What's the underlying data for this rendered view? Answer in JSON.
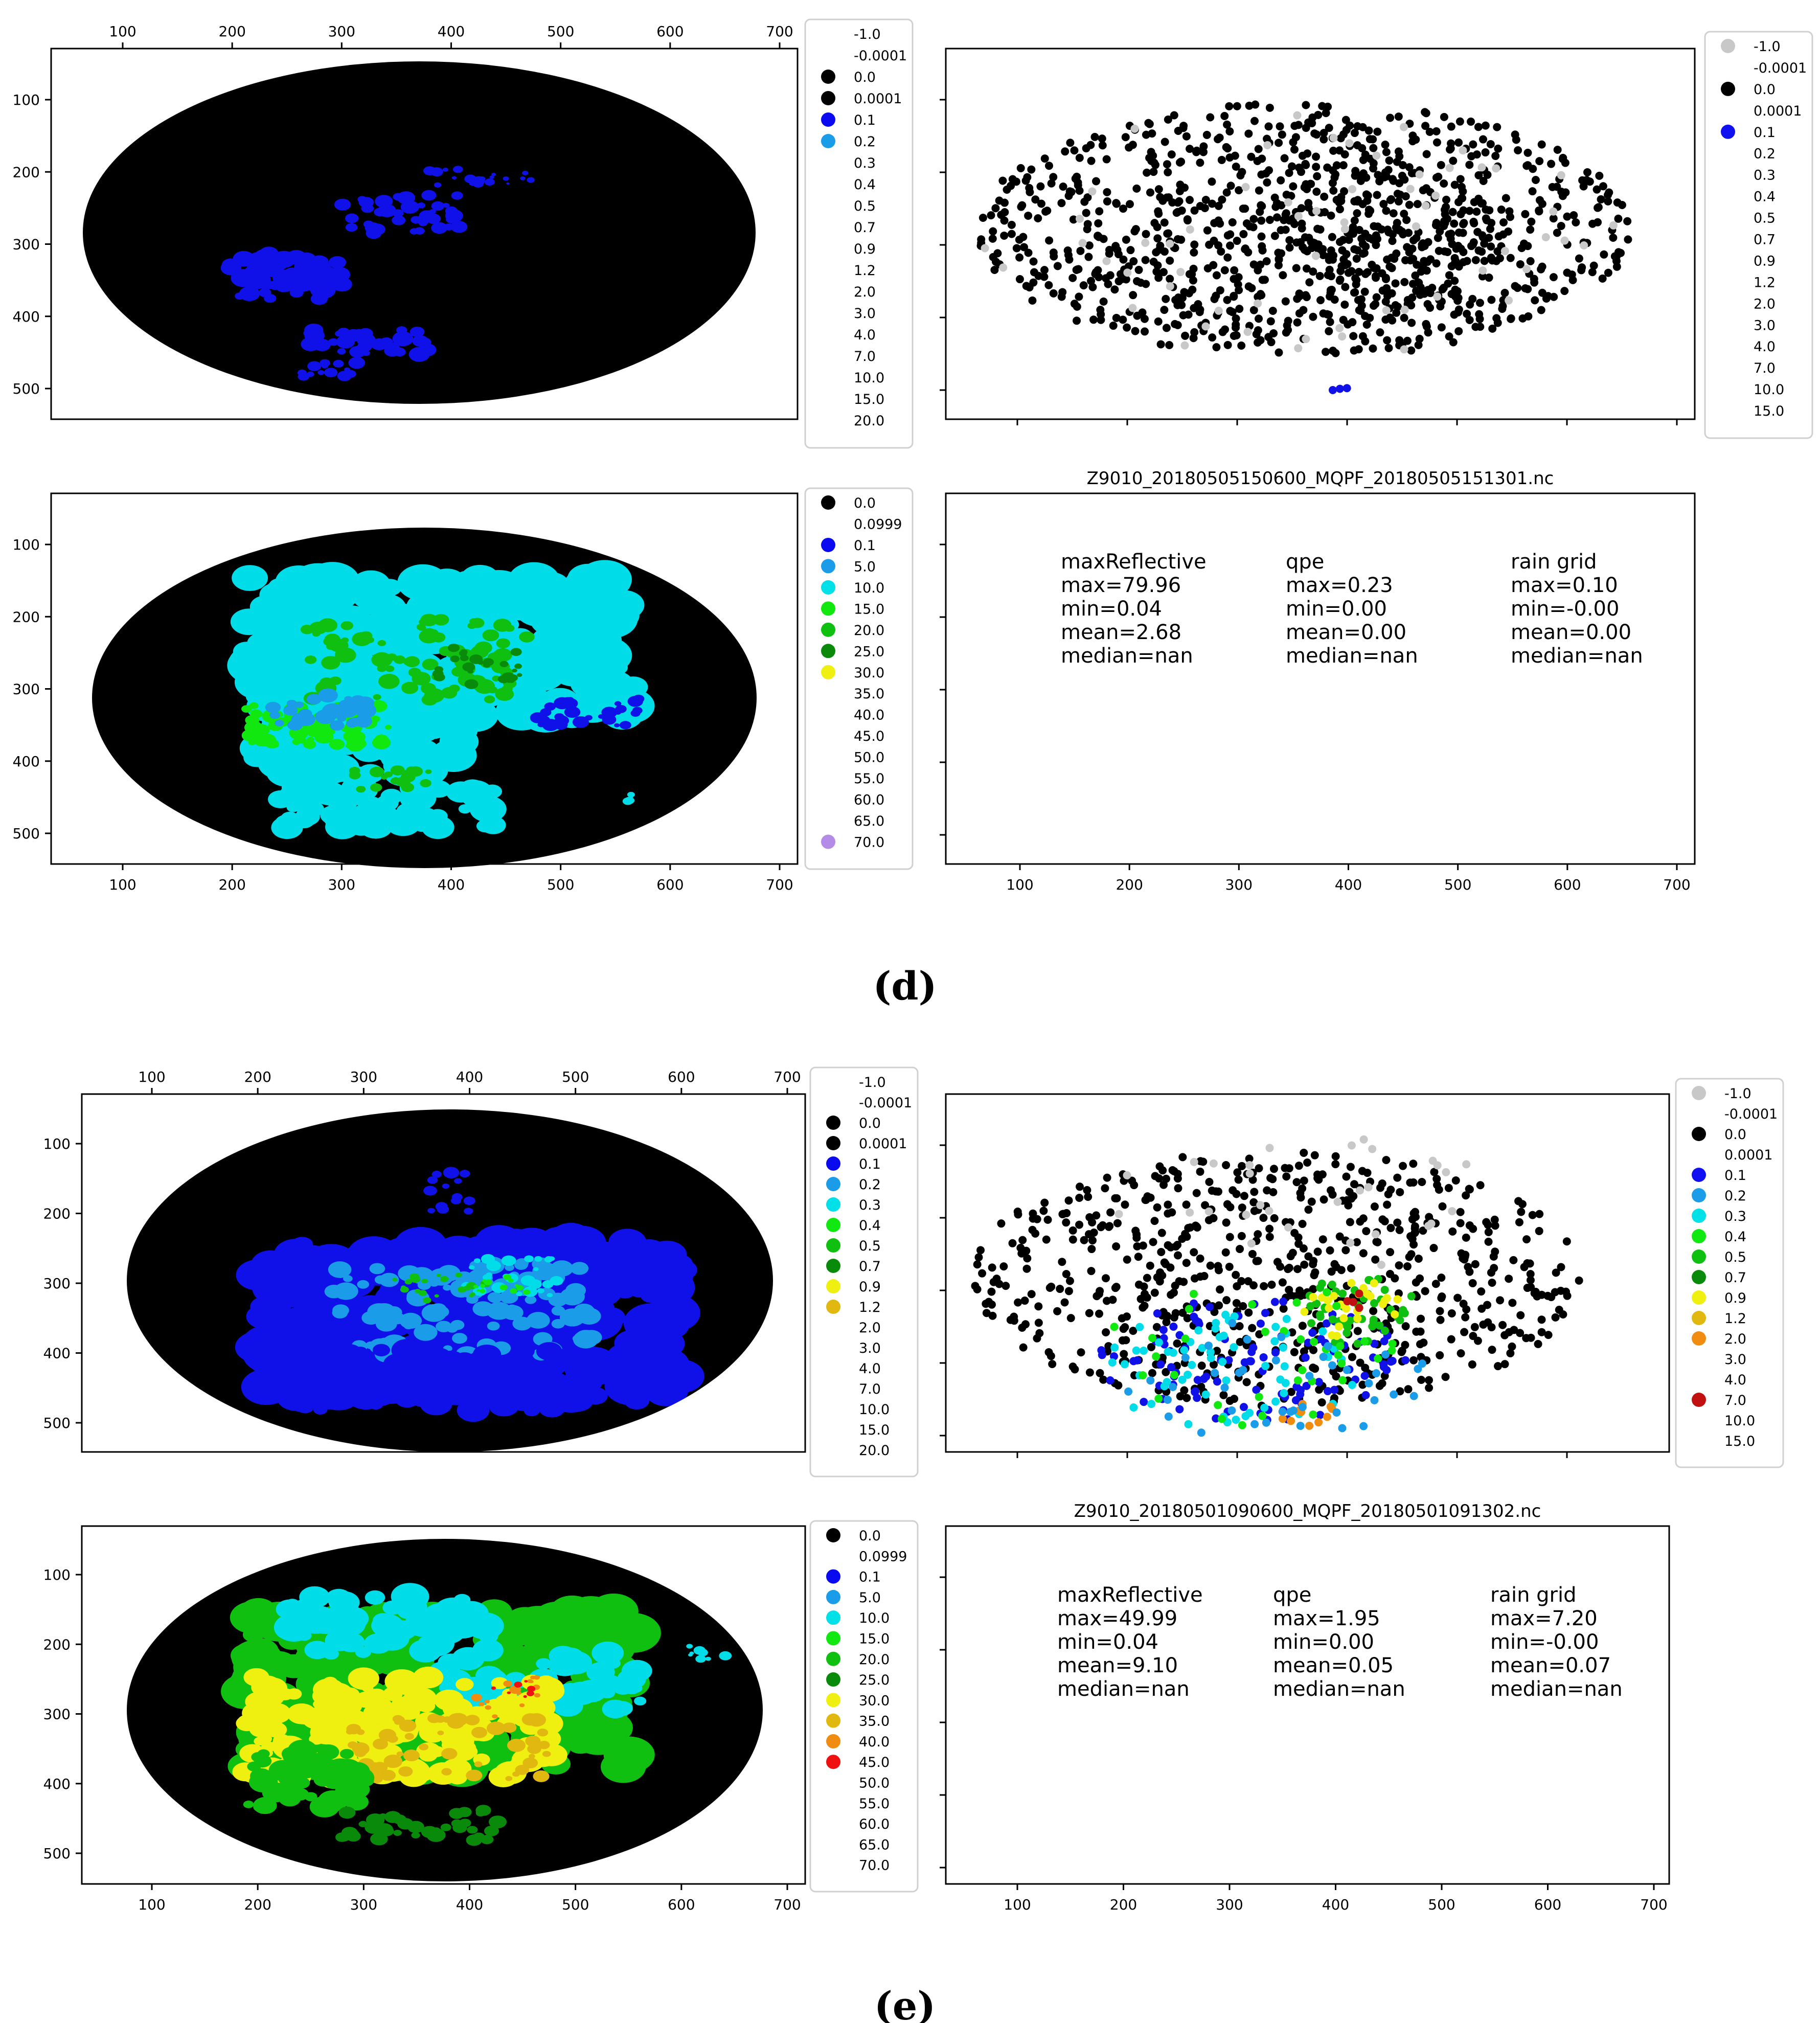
{
  "figure_labels": {
    "d": "d",
    "e": "e"
  },
  "colors": {
    "bg": "#000000",
    "scatter_black": "#000000",
    "scatter_gray": "#c8c8c8",
    "scatter_blue": "#1010e8"
  },
  "panels": {
    "d_qpe": {
      "legend": [
        "-1.0",
        "-0.0001",
        "0.0",
        "0.0001",
        "0.1",
        "0.2",
        "0.3",
        "0.4",
        "0.5",
        "0.7",
        "0.9",
        "1.2",
        "2.0",
        "3.0",
        "4.0",
        "7.0",
        "10.0",
        "15.0",
        "20.0"
      ],
      "legend_colors": [
        "",
        "",
        "#000000",
        "#000000",
        "#0a0af0",
        "#1a9ce8",
        "",
        "",
        "",
        "",
        "",
        "",
        "",
        "",
        "",
        "",
        "",
        "",
        ""
      ]
    },
    "d_gauge": {
      "legend": [
        "-1.0",
        "-0.0001",
        "0.0",
        "0.0001",
        "0.1",
        "0.2",
        "0.3",
        "0.4",
        "0.5",
        "0.7",
        "0.9",
        "1.2",
        "2.0",
        "3.0",
        "4.0",
        "7.0",
        "10.0",
        "15.0"
      ],
      "legend_colors": [
        "#c8c8c8",
        "",
        "#000000",
        "",
        "#1010f0",
        "",
        "",
        "",
        "",
        "",
        "",
        "",
        "",
        "",
        "",
        "",
        "",
        ""
      ]
    },
    "d_ref": {
      "legend": [
        "0.0",
        "0.0999",
        "0.1",
        "5.0",
        "10.0",
        "15.0",
        "20.0",
        "25.0",
        "30.0",
        "35.0",
        "40.0",
        "45.0",
        "50.0",
        "55.0",
        "60.0",
        "65.0",
        "70.0"
      ],
      "legend_colors": [
        "#000000",
        "",
        "#0a0af0",
        "#1a9ce8",
        "#00e0e8",
        "#10e810",
        "#10c010",
        "#0a8a0a",
        "#f0f010",
        "",
        "",
        "",
        "",
        "",
        "",
        "",
        "#b48ce8"
      ]
    },
    "d_stats": {
      "title": "Z9010_20180505150600_MQPF_20180505151301.nc",
      "columns": [
        {
          "name": "maxReflective",
          "lines": [
            "max=79.96",
            "min=0.04",
            "mean=2.68",
            "median=nan"
          ]
        },
        {
          "name": "qpe",
          "lines": [
            "max=0.23",
            "min=0.00",
            "mean=0.00",
            "median=nan"
          ]
        },
        {
          "name": "rain grid",
          "lines": [
            "max=0.10",
            "min=-0.00",
            "mean=0.00",
            "median=nan"
          ]
        }
      ]
    },
    "e_qpe": {
      "legend": [
        "-1.0",
        "-0.0001",
        "0.0",
        "0.0001",
        "0.1",
        "0.2",
        "0.3",
        "0.4",
        "0.5",
        "0.7",
        "0.9",
        "1.2",
        "2.0",
        "3.0",
        "4.0",
        "7.0",
        "10.0",
        "15.0",
        "20.0"
      ],
      "legend_colors": [
        "",
        "",
        "#000000",
        "#000000",
        "#0a0af0",
        "#1a9ce8",
        "#00e0e8",
        "#10e810",
        "#10c010",
        "#0a8a0a",
        "#f0f010",
        "#e0b810",
        "",
        "",
        "",
        "",
        "",
        "",
        ""
      ]
    },
    "e_gauge": {
      "legend": [
        "-1.0",
        "-0.0001",
        "0.0",
        "0.0001",
        "0.1",
        "0.2",
        "0.3",
        "0.4",
        "0.5",
        "0.7",
        "0.9",
        "1.2",
        "2.0",
        "3.0",
        "4.0",
        "7.0",
        "10.0",
        "15.0"
      ],
      "legend_colors": [
        "#c8c8c8",
        "",
        "#000000",
        "",
        "#1010f0",
        "#1a9ce8",
        "#00e0e8",
        "#10e810",
        "#10c010",
        "#0a8a0a",
        "#f0f010",
        "#e0b810",
        "#f08c10",
        "",
        "",
        "#c01010",
        "",
        ""
      ]
    },
    "e_ref": {
      "legend": [
        "0.0",
        "0.0999",
        "0.1",
        "5.0",
        "10.0",
        "15.0",
        "20.0",
        "25.0",
        "30.0",
        "35.0",
        "40.0",
        "45.0",
        "50.0",
        "55.0",
        "60.0",
        "65.0",
        "70.0"
      ],
      "legend_colors": [
        "#000000",
        "",
        "#0a0af0",
        "#1a9ce8",
        "#00e0e8",
        "#10e810",
        "#10c010",
        "#0a8a0a",
        "#f0f010",
        "#e0b810",
        "#f08c10",
        "#f01010",
        "",
        "",
        "",
        "",
        ""
      ]
    },
    "e_stats": {
      "title": "Z9010_20180501090600_MQPF_20180501091302.nc",
      "columns": [
        {
          "name": "maxReflective",
          "lines": [
            "max=49.99",
            "min=0.04",
            "mean=9.10",
            "median=nan"
          ]
        },
        {
          "name": "qpe",
          "lines": [
            "max=1.95",
            "min=0.00",
            "mean=0.05",
            "median=nan"
          ]
        },
        {
          "name": "rain grid",
          "lines": [
            "max=7.20",
            "min=-0.00",
            "mean=0.07",
            "median=nan"
          ]
        }
      ]
    }
  },
  "chart_data": [
    {
      "id": "d_qpe",
      "type": "heatmap",
      "x_ticks": [
        100,
        200,
        300,
        400,
        500,
        600,
        700
      ],
      "y_ticks": [
        100,
        200,
        300,
        400,
        500
      ],
      "x_axis_position": "top"
    },
    {
      "id": "d_gauge",
      "type": "scatter",
      "x_axis_position": "none",
      "y_ticks": [],
      "legend_placement": "right"
    },
    {
      "id": "d_ref",
      "type": "heatmap",
      "x_ticks": [
        100,
        200,
        300,
        400,
        500,
        600,
        700
      ],
      "y_ticks": [
        100,
        200,
        300,
        400,
        500
      ],
      "x_axis_position": "bottom"
    },
    {
      "id": "d_stats",
      "type": "table",
      "x_ticks": [
        100,
        200,
        300,
        400,
        500,
        600,
        700
      ]
    },
    {
      "id": "e_qpe",
      "type": "heatmap",
      "x_ticks": [
        100,
        200,
        300,
        400,
        500,
        600,
        700
      ],
      "y_ticks": [
        100,
        200,
        300,
        400,
        500
      ],
      "x_axis_position": "top"
    },
    {
      "id": "e_gauge",
      "type": "scatter",
      "x_axis_position": "none",
      "y_ticks": [],
      "legend_placement": "right"
    },
    {
      "id": "e_ref",
      "type": "heatmap",
      "x_ticks": [
        100,
        200,
        300,
        400,
        500,
        600,
        700
      ],
      "y_ticks": [
        100,
        200,
        300,
        400,
        500
      ],
      "x_axis_position": "bottom"
    },
    {
      "id": "e_stats",
      "type": "table",
      "x_ticks": [
        100,
        200,
        300,
        400,
        500,
        600,
        700
      ]
    }
  ]
}
